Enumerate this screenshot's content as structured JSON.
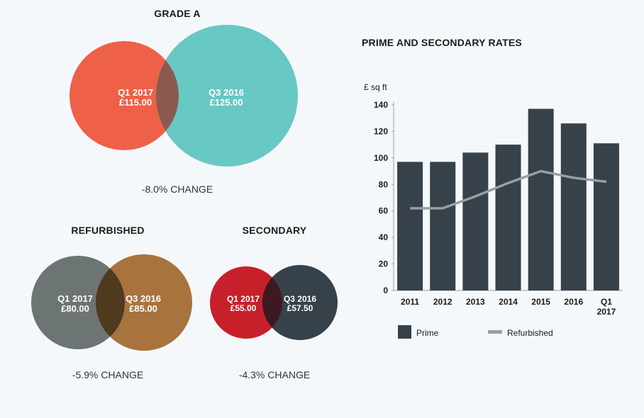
{
  "venns": [
    {
      "title": "GRADE A",
      "change": "-8.0% CHANGE",
      "left": {
        "period": "Q1 2017",
        "value": "£115.00",
        "color": "#ef6048"
      },
      "right": {
        "period": "Q3 2016",
        "value": "£125.00",
        "color": "#68c8c3"
      },
      "overlap_color": "#8b5a4f"
    },
    {
      "title": "REFURBISHED",
      "change": "-5.9% CHANGE",
      "left": {
        "period": "Q1 2017",
        "value": "£80.00",
        "color": "#6d7474"
      },
      "right": {
        "period": "Q3 2016",
        "value": "£85.00",
        "color": "#a8733d"
      },
      "overlap_color": "#4e3a1f"
    },
    {
      "title": "SECONDARY",
      "change": "-4.3% CHANGE",
      "left": {
        "period": "Q1 2017",
        "value": "£55.00",
        "color": "#c8202b"
      },
      "right": {
        "period": "Q3 2016",
        "value": "£57.50",
        "color": "#36414a"
      },
      "overlap_color": "#3d1a22"
    }
  ],
  "chart_data": {
    "type": "bar",
    "title": "PRIME AND SECONDARY RATES",
    "ylabel": "£ sq ft",
    "ylim": [
      0,
      140
    ],
    "yticks": [
      0,
      20,
      40,
      60,
      80,
      100,
      120,
      140
    ],
    "categories": [
      [
        "2011"
      ],
      [
        "2012"
      ],
      [
        "2013"
      ],
      [
        "2014"
      ],
      [
        "2015"
      ],
      [
        "2016"
      ],
      [
        "Q1",
        "2017"
      ]
    ],
    "series": [
      {
        "name": "Prime",
        "type": "bar",
        "color": "#36414a",
        "values": [
          97,
          97,
          104,
          110,
          137,
          126,
          111
        ]
      },
      {
        "name": "Refurbished",
        "type": "line",
        "color": "#9a9ea2",
        "values": [
          62,
          62,
          71,
          81,
          90,
          85,
          82
        ]
      }
    ],
    "legend": "bottom-left"
  }
}
